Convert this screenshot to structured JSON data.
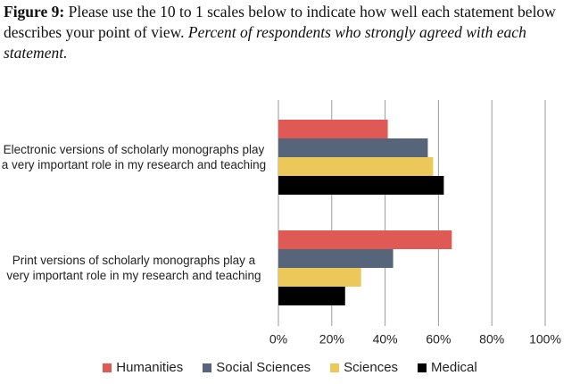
{
  "chart_data": {
    "type": "bar",
    "orientation": "horizontal",
    "title_label": "Figure 9:",
    "title": "Please use the 10 to 1 scales below to indicate how well each statement below describes your point of view.",
    "subtitle": "Percent of respondents who strongly agreed with each statement.",
    "categories": [
      "Electronic versions of scholarly monographs play a very important role in my research and teaching",
      "Print versions of scholarly monographs play a very important role in my research and teaching"
    ],
    "series": [
      {
        "name": "Humanities",
        "color": "#e05a55",
        "values": [
          41,
          65
        ]
      },
      {
        "name": "Social Sciences",
        "color": "#56657a",
        "values": [
          56,
          43
        ]
      },
      {
        "name": "Sciences",
        "color": "#ecc85a",
        "values": [
          58,
          31
        ]
      },
      {
        "name": "Medical",
        "color": "#000000",
        "values": [
          62,
          25
        ]
      }
    ],
    "xlim": [
      0,
      100
    ],
    "xticks": [
      {
        "value": 0,
        "label": "0%"
      },
      {
        "value": 20,
        "label": "20%"
      },
      {
        "value": 40,
        "label": "40%"
      },
      {
        "value": 60,
        "label": "60%"
      },
      {
        "value": 80,
        "label": "80%"
      },
      {
        "value": 100,
        "label": "100%"
      }
    ],
    "grid": true,
    "legend": "bottom"
  }
}
